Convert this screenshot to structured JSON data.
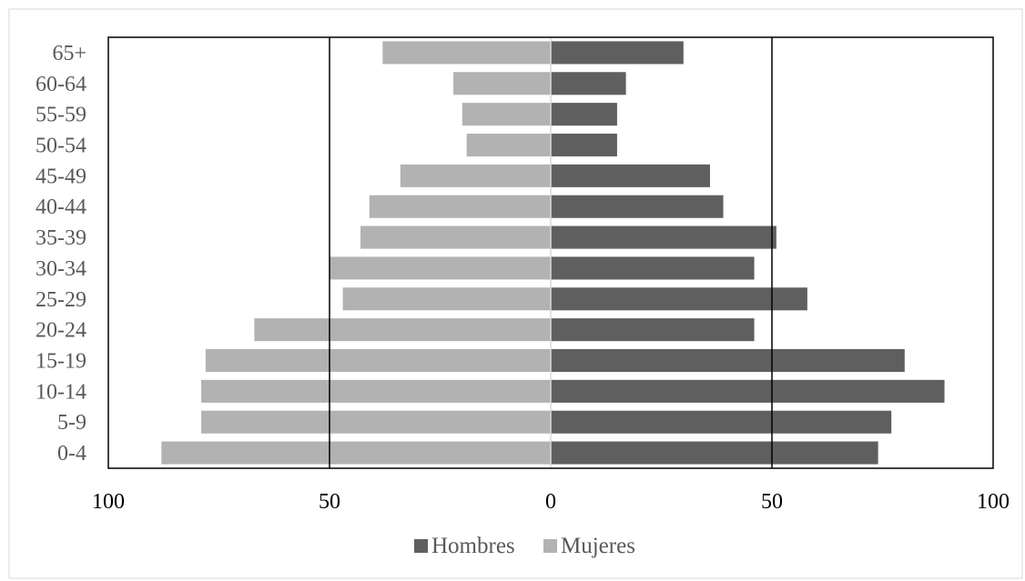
{
  "chart_data": {
    "type": "bar",
    "orientation": "horizontal",
    "layout": "population-pyramid",
    "categories": [
      "0-4",
      "5-9",
      "10-14",
      "15-19",
      "20-24",
      "25-29",
      "30-34",
      "35-39",
      "40-44",
      "45-49",
      "50-54",
      "55-59",
      "60-64",
      "65+"
    ],
    "series": [
      {
        "name": "Hombres",
        "side": "right",
        "color": "#5f5f5f",
        "values": [
          74,
          77,
          89,
          80,
          46,
          58,
          46,
          51,
          39,
          36,
          15,
          15,
          17,
          30
        ]
      },
      {
        "name": "Mujeres",
        "side": "left",
        "color": "#b2b2b2",
        "values": [
          88,
          79,
          79,
          78,
          67,
          47,
          50,
          43,
          41,
          34,
          19,
          20,
          22,
          38
        ]
      }
    ],
    "xlim": [
      -100,
      100
    ],
    "xticks": [
      -100,
      -50,
      0,
      50,
      100
    ],
    "xtick_labels": [
      "100",
      "50",
      "0",
      "50",
      "100"
    ],
    "grid": "vertical",
    "legend_position": "bottom",
    "title": "",
    "xlabel": "",
    "ylabel": ""
  }
}
